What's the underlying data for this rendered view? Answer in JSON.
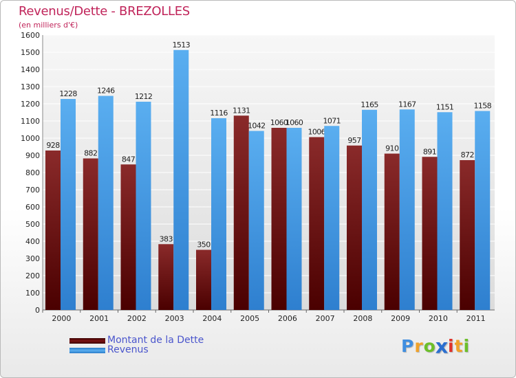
{
  "header": {
    "title": "Revenus/Dette - BREZOLLES",
    "subtitle": "(en milliers d'€)"
  },
  "chart_data": {
    "type": "bar",
    "categories": [
      "2000",
      "2001",
      "2002",
      "2003",
      "2004",
      "2005",
      "2006",
      "2007",
      "2008",
      "2009",
      "2010",
      "2011"
    ],
    "series": [
      {
        "name": "Montant de la Dette",
        "color": "#7d1f1f",
        "values": [
          928,
          882,
          847,
          383,
          350,
          1131,
          1060,
          1006,
          957,
          910,
          891,
          872
        ]
      },
      {
        "name": "Revenus",
        "color": "#3f97e2",
        "values": [
          1228,
          1246,
          1212,
          1513,
          1116,
          1042,
          1060,
          1071,
          1165,
          1167,
          1151,
          1158
        ]
      }
    ],
    "ylim": [
      0,
      1600
    ],
    "yticks": [
      0,
      100,
      200,
      300,
      400,
      500,
      600,
      700,
      800,
      900,
      1000,
      1100,
      1200,
      1300,
      1400,
      1500,
      1600
    ],
    "grid": true,
    "legend_position": "bottom-left"
  },
  "legend": {
    "items": [
      {
        "label": "Montant de la Dette",
        "color": "#5e0000"
      },
      {
        "label": "Revenus",
        "color": "#3f97e2"
      }
    ]
  },
  "logo": {
    "letters": [
      {
        "char": "P",
        "color": "#3f8ee0"
      },
      {
        "char": "r",
        "color": "#f0a22a"
      },
      {
        "char": "o",
        "color": "#6cbf2a"
      },
      {
        "char": "x",
        "color": "#2a6fd0"
      },
      {
        "char": "i",
        "color": "#e0322a"
      },
      {
        "char": "t",
        "color": "#f0a22a"
      },
      {
        "char": "i",
        "color": "#6cbf2a"
      }
    ]
  }
}
